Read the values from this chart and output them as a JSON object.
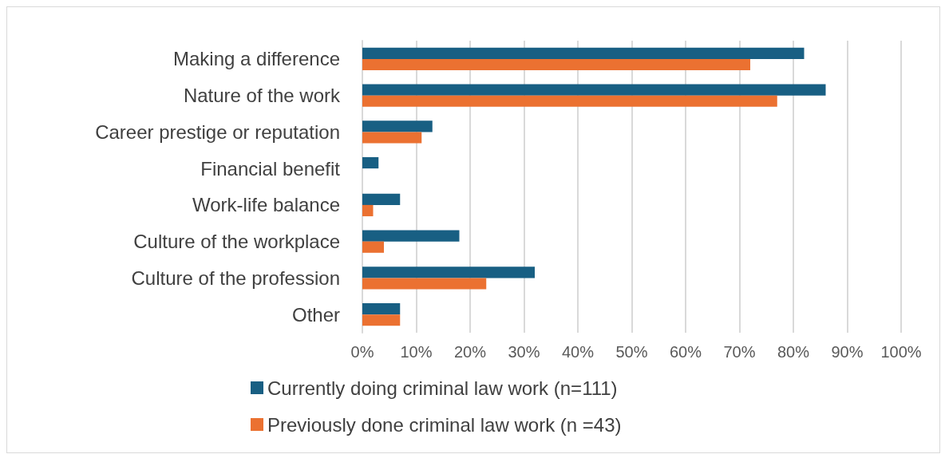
{
  "chart_data": {
    "type": "bar",
    "orientation": "horizontal",
    "categories": [
      "Making a difference",
      "Nature of the work",
      "Career prestige or reputation",
      "Financial benefit",
      "Work-life balance",
      "Culture of the workplace",
      "Culture of the profession",
      "Other"
    ],
    "series": [
      {
        "name": "Currently doing criminal law work (n=111)",
        "color": "#185f83",
        "values": [
          82,
          86,
          13,
          3,
          7,
          18,
          32,
          7
        ]
      },
      {
        "name": "Previously done criminal law work (n =43)",
        "color": "#eb7131",
        "values": [
          72,
          77,
          11,
          0,
          2,
          4,
          23,
          7
        ]
      }
    ],
    "xlim": [
      0,
      100
    ],
    "xticks": [
      {
        "value": 0,
        "label": "0%"
      },
      {
        "value": 10,
        "label": "10%"
      },
      {
        "value": 20,
        "label": "20%"
      },
      {
        "value": 30,
        "label": "30%"
      },
      {
        "value": 40,
        "label": "40%"
      },
      {
        "value": 50,
        "label": "50%"
      },
      {
        "value": 60,
        "label": "60%"
      },
      {
        "value": 70,
        "label": "70%"
      },
      {
        "value": 80,
        "label": "80%"
      },
      {
        "value": 90,
        "label": "90%"
      },
      {
        "value": 100,
        "label": "100%"
      }
    ],
    "grid": "x",
    "legend": "bottom"
  }
}
